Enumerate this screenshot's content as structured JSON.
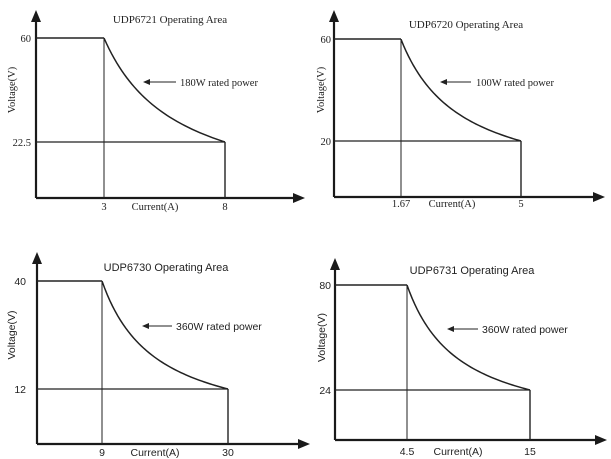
{
  "colors": {
    "axis": "#1a1a1a",
    "curve": "#222222",
    "text": "#222222",
    "background": "#ffffff"
  },
  "chart_data": [
    {
      "type": "line",
      "title": "UDP6721 Operating Area",
      "xlabel": "Current(A)",
      "ylabel": "Voltage(V)",
      "annotation": "180W rated power",
      "rated_power_w": 180,
      "v_max": 60,
      "i_max": 8,
      "corner_current": 3,
      "corner_voltage": 22.5,
      "x_ticks": [
        "3",
        "8"
      ],
      "y_ticks": [
        "60",
        "22.5"
      ],
      "font": "serif"
    },
    {
      "type": "line",
      "title": "UDP6720 Operating Area",
      "xlabel": "Current(A)",
      "ylabel": "Voltage(V)",
      "annotation": "100W rated power",
      "rated_power_w": 100,
      "v_max": 60,
      "i_max": 5,
      "corner_current": 1.67,
      "corner_voltage": 20,
      "x_ticks": [
        "1.67",
        "5"
      ],
      "y_ticks": [
        "60",
        "20"
      ],
      "font": "serif"
    },
    {
      "type": "line",
      "title": "UDP6730 Operating Area",
      "xlabel": "Current(A)",
      "ylabel": "Voltage(V)",
      "annotation": "360W rated power",
      "rated_power_w": 360,
      "v_max": 40,
      "i_max": 30,
      "corner_current": 9,
      "corner_voltage": 12,
      "x_ticks": [
        "9",
        "30"
      ],
      "y_ticks": [
        "40",
        "12"
      ],
      "font": "sans"
    },
    {
      "type": "line",
      "title": "UDP6731 Operating Area",
      "xlabel": "Current(A)",
      "ylabel": "Voltage(V)",
      "annotation": "360W rated power",
      "rated_power_w": 360,
      "v_max": 80,
      "i_max": 15,
      "corner_current": 4.5,
      "corner_voltage": 24,
      "x_ticks": [
        "4.5",
        "15"
      ],
      "y_ticks": [
        "80",
        "24"
      ],
      "font": "sans"
    }
  ]
}
